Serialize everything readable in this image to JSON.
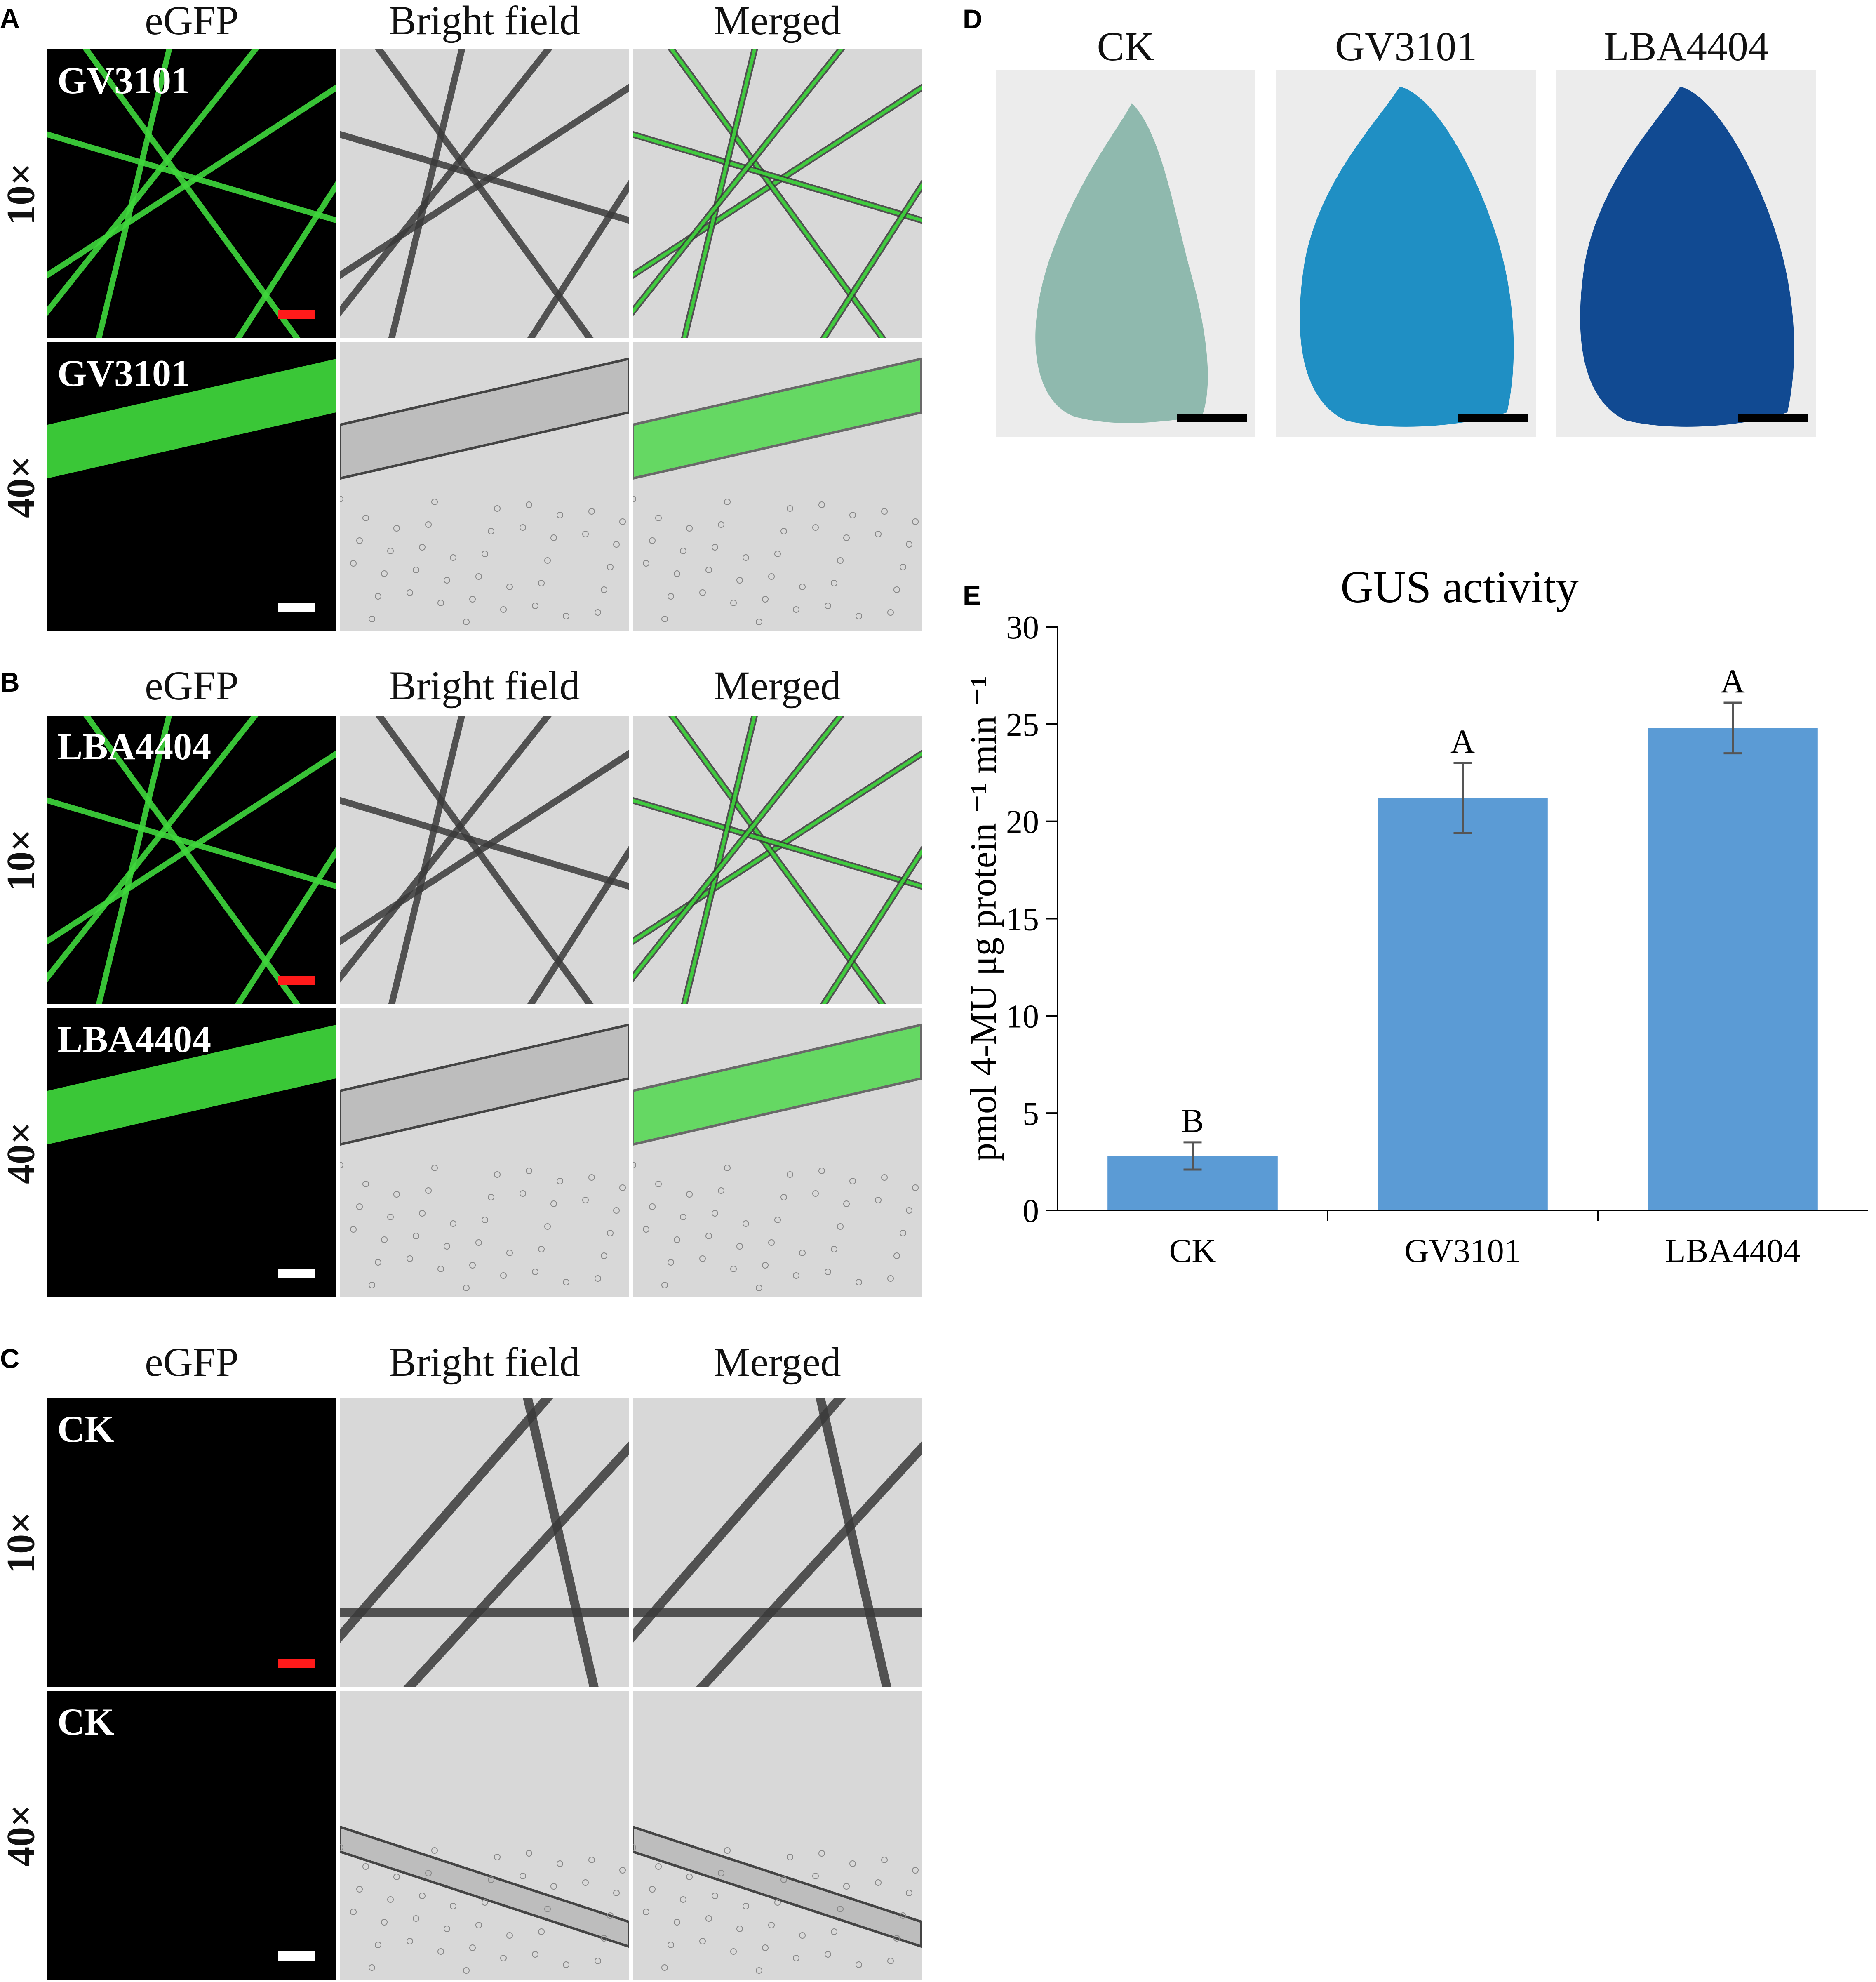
{
  "panels": {
    "A": {
      "letter": "A",
      "columns": [
        "eGFP",
        "Bright field",
        "Merged"
      ],
      "rows": [
        {
          "magnification": "10×",
          "label": "GV3101"
        },
        {
          "magnification": "40×",
          "label": "GV3101"
        }
      ]
    },
    "B": {
      "letter": "B",
      "columns": [
        "eGFP",
        "Bright field",
        "Merged"
      ],
      "rows": [
        {
          "magnification": "10×",
          "label": "LBA4404"
        },
        {
          "magnification": "40×",
          "label": "LBA4404"
        }
      ]
    },
    "C": {
      "letter": "C",
      "columns": [
        "eGFP",
        "Bright field",
        "Merged"
      ],
      "rows": [
        {
          "magnification": "10×",
          "label": "CK"
        },
        {
          "magnification": "40×",
          "label": "CK"
        }
      ]
    },
    "D": {
      "letter": "D",
      "samples": [
        "CK",
        "GV3101",
        "LBA4404"
      ]
    },
    "E": {
      "letter": "E"
    }
  },
  "colors": {
    "egfp_green": "#3fd83c",
    "scale_bar_10x": "#ff1a1a",
    "scale_bar_40x": "#ffffff",
    "bar_fill": "#5b9bd5",
    "gus_ck": "#8fb9ae",
    "gus_gv3101": "#1f8fc4",
    "gus_lba4404": "#114a92"
  },
  "chart_data": {
    "type": "bar",
    "title": "GUS activity",
    "ylabel": "pmol 4-MU μg protein ⁻¹ min ⁻¹",
    "xlabel": "",
    "categories": [
      "CK",
      "GV3101",
      "LBA4404"
    ],
    "values": [
      2.8,
      21.2,
      24.8
    ],
    "errors": [
      0.7,
      1.8,
      1.3
    ],
    "significance_letters": [
      "B",
      "A",
      "A"
    ],
    "ylim": [
      0,
      30
    ],
    "yticks": [
      0,
      5,
      10,
      15,
      20,
      25,
      30
    ],
    "grid": false,
    "legend": "none"
  }
}
